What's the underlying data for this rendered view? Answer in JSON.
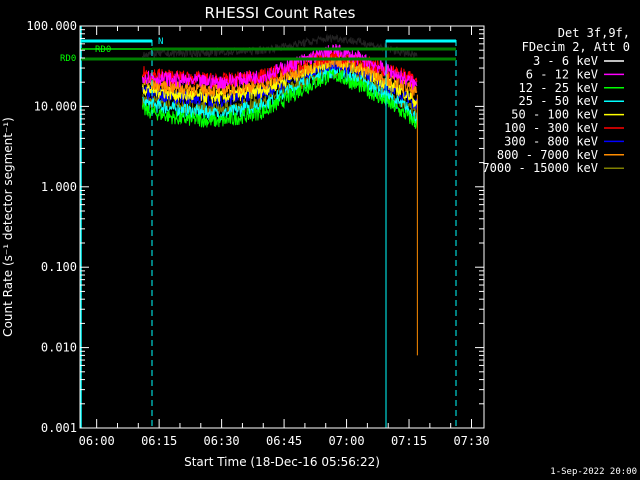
{
  "chart_data": {
    "type": "line",
    "title": "RHESSI Count Rates",
    "xlabel": "Start Time (18-Dec-16 05:56:22)",
    "ylabel": "Count Rate (s⁻¹ detector segment⁻¹)",
    "yscale": "log",
    "ylim": [
      0.001,
      100
    ],
    "xlim": [
      "05:56",
      "07:33"
    ],
    "x_ticks": [
      "06:00",
      "06:15",
      "06:30",
      "06:45",
      "07:00",
      "07:15",
      "07:30"
    ],
    "y_ticks": [
      "100.000",
      "10.000",
      "1.000",
      "0.100",
      "0.010",
      "0.001"
    ],
    "legend_header": [
      "Det 3f,9f,",
      "FDecim 2, Att 0"
    ],
    "legend_position": "right",
    "series": [
      {
        "name": "3 - 6 keV",
        "color": "#000000",
        "x": [
          "06:11",
          "06:20",
          "06:30",
          "06:40",
          "06:50",
          "06:57",
          "07:04",
          "07:10",
          "07:14",
          "07:17"
        ],
        "values": [
          45,
          46,
          47,
          50,
          62,
          72,
          62,
          52,
          46,
          42
        ]
      },
      {
        "name": "6 - 12 keV",
        "color": "#ff00ff",
        "x": [
          "06:11",
          "06:20",
          "06:30",
          "06:40",
          "06:50",
          "06:57",
          "07:04",
          "07:10",
          "07:14",
          "07:17"
        ],
        "values": [
          24,
          21,
          20,
          24,
          38,
          50,
          38,
          28,
          22,
          18
        ]
      },
      {
        "name": "12 - 25 keV",
        "color": "#00ff00",
        "x": [
          "06:11",
          "06:20",
          "06:30",
          "06:40",
          "06:50",
          "06:57",
          "07:04",
          "07:10",
          "07:14",
          "07:17"
        ],
        "values": [
          9,
          7,
          6.5,
          8.5,
          17,
          25,
          17,
          11,
          8,
          6
        ]
      },
      {
        "name": "25 - 50 keV",
        "color": "#00ffff",
        "x": [
          "06:11",
          "06:20",
          "06:30",
          "06:40",
          "06:50",
          "06:57",
          "07:04",
          "07:10",
          "07:14",
          "07:17"
        ],
        "values": [
          11,
          9,
          8,
          10.5,
          20,
          28,
          20,
          13,
          10,
          7
        ]
      },
      {
        "name": "50 - 100 keV",
        "color": "#ffff00",
        "x": [
          "06:11",
          "06:20",
          "06:30",
          "06:40",
          "06:50",
          "06:57",
          "07:04",
          "07:10",
          "07:14",
          "07:17"
        ],
        "values": [
          17,
          14,
          13,
          16,
          28,
          38,
          28,
          19,
          15,
          11
        ]
      },
      {
        "name": "100 - 300 keV",
        "color": "#ff0000",
        "x": [
          "06:11",
          "06:20",
          "06:30",
          "06:40",
          "06:50",
          "06:57",
          "07:04",
          "07:10",
          "07:14",
          "07:17"
        ],
        "values": [
          26,
          23,
          21,
          24,
          35,
          44,
          36,
          28,
          24,
          20
        ]
      },
      {
        "name": "300 - 800 keV",
        "color": "#0000ff",
        "x": [
          "06:11",
          "06:20",
          "06:30",
          "06:40",
          "06:50",
          "06:57",
          "07:04",
          "07:10",
          "07:14",
          "07:17"
        ],
        "values": [
          15,
          13,
          12,
          15,
          27,
          35,
          27,
          18,
          14,
          10
        ]
      },
      {
        "name": "800 - 7000 keV",
        "color": "#ff8c00",
        "x": [
          "06:11",
          "06:20",
          "06:30",
          "06:40",
          "06:50",
          "06:57",
          "07:04",
          "07:10",
          "07:14",
          "07:17",
          "07:17",
          "07:17"
        ],
        "values": [
          20,
          17,
          16,
          19,
          30,
          38,
          30,
          22,
          18,
          14,
          0.008,
          0.008
        ]
      },
      {
        "name": "7000 - 15000 keV",
        "color": "#808000",
        "x": [
          "06:11",
          "06:20",
          "06:30",
          "06:40",
          "06:50",
          "06:57",
          "07:04",
          "07:10",
          "07:14",
          "07:17"
        ],
        "values": [
          12,
          10,
          9,
          11.5,
          21,
          28,
          21,
          14,
          11,
          8
        ]
      }
    ],
    "annotations": [
      {
        "text": "RD0",
        "color": "#00ff00"
      },
      {
        "text": "RD0",
        "color": "#00ff00"
      },
      {
        "text": "N",
        "color": "#00ffff"
      }
    ],
    "footer": "1-Sep-2022 20:00"
  }
}
